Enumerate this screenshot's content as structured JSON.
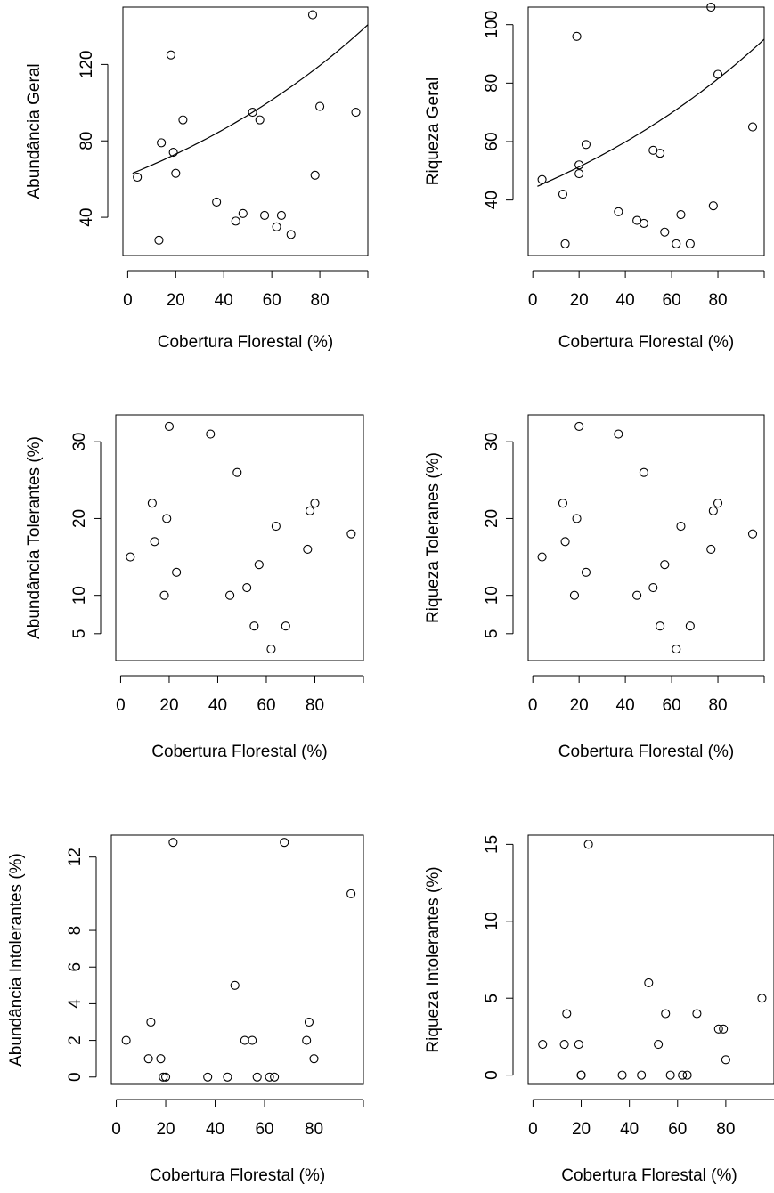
{
  "chart_data": [
    {
      "type": "scatter",
      "xlabel": "Cobertura Florestal (%)",
      "ylabel": "Abundância Geral",
      "xlim": [
        -2,
        100
      ],
      "ylim": [
        20,
        150
      ],
      "xticks": [
        0,
        20,
        40,
        60,
        80
      ],
      "yticks": [
        40,
        80,
        120
      ],
      "x": [
        4,
        13,
        14,
        18,
        19,
        20,
        23,
        37,
        45,
        48,
        52,
        55,
        57,
        62,
        64,
        68,
        77,
        78,
        80,
        95
      ],
      "y": [
        61,
        28,
        79,
        125,
        74,
        63,
        91,
        48,
        38,
        42,
        95,
        91,
        41,
        35,
        41,
        31,
        146,
        62,
        98,
        95
      ],
      "fit": {
        "x_range": [
          2,
          100
        ],
        "a": 62,
        "b": 0.0082
      }
    },
    {
      "type": "scatter",
      "xlabel": "Cobertura Florestal (%)",
      "ylabel": "Riqueza Geral",
      "xlim": [
        -2,
        100
      ],
      "ylim": [
        21,
        106
      ],
      "xticks": [
        0,
        20,
        40,
        60,
        80
      ],
      "yticks": [
        40,
        60,
        80,
        100
      ],
      "x": [
        4,
        13,
        14,
        19,
        20,
        20,
        23,
        37,
        45,
        48,
        52,
        55,
        57,
        62,
        64,
        68,
        77,
        78,
        80,
        95
      ],
      "y": [
        47,
        42,
        25,
        96,
        52,
        49,
        59,
        36,
        33,
        32,
        57,
        56,
        29,
        25,
        35,
        25,
        106,
        38,
        83,
        65
      ],
      "fit": {
        "x_range": [
          2,
          100
        ],
        "a": 44,
        "b": 0.0077
      }
    },
    {
      "type": "scatter",
      "xlabel": "Cobertura Florestal (%)",
      "ylabel": "Abundância Tolerantes (%)",
      "xlim": [
        -2,
        100
      ],
      "ylim": [
        1.5,
        33.5
      ],
      "xticks": [
        0,
        20,
        40,
        60,
        80
      ],
      "yticks": [
        5,
        10,
        20,
        30
      ],
      "x": [
        4,
        13,
        14,
        18,
        19,
        20,
        23,
        37,
        45,
        48,
        52,
        55,
        57,
        62,
        64,
        68,
        77,
        78,
        80,
        95
      ],
      "y": [
        15,
        22,
        17,
        10,
        20,
        32,
        13,
        31,
        10,
        26,
        11,
        6,
        14,
        3,
        19,
        6,
        16,
        21,
        22,
        18
      ]
    },
    {
      "type": "scatter",
      "xlabel": "Cobertura Florestal (%)",
      "ylabel": "Riqueza Toleranes (%)",
      "xlim": [
        -2,
        100
      ],
      "ylim": [
        1.5,
        33.5
      ],
      "xticks": [
        0,
        20,
        40,
        60,
        80
      ],
      "yticks": [
        5,
        10,
        20,
        30
      ],
      "x": [
        4,
        13,
        14,
        18,
        19,
        20,
        23,
        37,
        45,
        48,
        52,
        55,
        57,
        62,
        64,
        68,
        77,
        78,
        80,
        95
      ],
      "y": [
        15,
        22,
        17,
        10,
        20,
        32,
        13,
        31,
        10,
        26,
        11,
        6,
        14,
        3,
        19,
        6,
        16,
        21,
        22,
        18
      ]
    },
    {
      "type": "scatter",
      "xlabel": "Cobertura Florestal (%)",
      "ylabel": "Abundância Intolerantes (%)",
      "xlim": [
        -2,
        100
      ],
      "ylim": [
        -0.4,
        13.2
      ],
      "xticks": [
        0,
        20,
        40,
        60,
        80
      ],
      "yticks": [
        0,
        2,
        4,
        6,
        8,
        12
      ],
      "x": [
        4,
        13,
        14,
        18,
        19,
        20,
        23,
        37,
        45,
        48,
        52,
        55,
        57,
        62,
        64,
        68,
        77,
        78,
        80,
        95
      ],
      "y": [
        2,
        1,
        3,
        1,
        0,
        0,
        12.8,
        0,
        0,
        5,
        2,
        2,
        0,
        0,
        0,
        12.8,
        2,
        3,
        1,
        10
      ]
    },
    {
      "type": "scatter",
      "xlabel": "Cobertura Florestal (%)",
      "ylabel": "Riqueza Intolerantes (%)",
      "xlim": [
        -2,
        100
      ],
      "ylim": [
        -0.6,
        15.6
      ],
      "xticks": [
        0,
        20,
        40,
        60,
        80
      ],
      "yticks": [
        0,
        5,
        10,
        15
      ],
      "x": [
        4,
        13,
        14,
        19,
        20,
        20,
        23,
        37,
        45,
        48,
        52,
        55,
        57,
        62,
        64,
        68,
        77,
        79,
        80,
        95
      ],
      "y": [
        2,
        2,
        4,
        2,
        0,
        0,
        15,
        0,
        0,
        6,
        2,
        4,
        0,
        0,
        0,
        4,
        3,
        3,
        1,
        5
      ]
    }
  ]
}
